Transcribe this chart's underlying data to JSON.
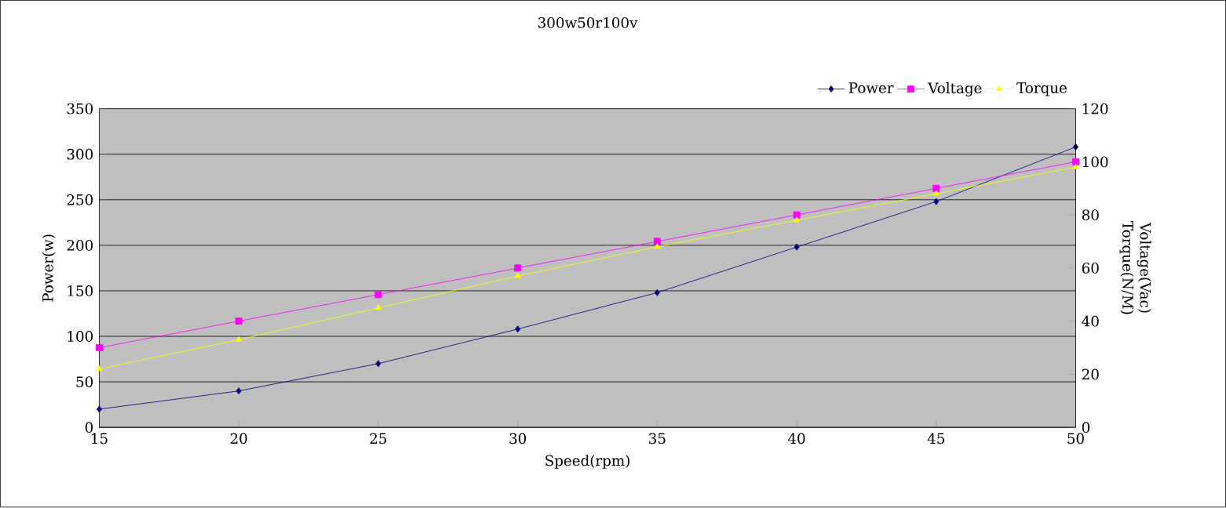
{
  "chart_data": {
    "type": "line",
    "title": "300w50r100v",
    "xlabel": "Speed(rpm)",
    "ylabel": "Power(w)",
    "y2label": "Voltage(Vac) Torque(N/M)",
    "x": [
      15,
      20,
      25,
      30,
      35,
      40,
      45,
      50
    ],
    "series": [
      {
        "name": "Power",
        "color": "#000080",
        "marker": "diamond",
        "values": [
          20,
          40,
          70,
          108,
          148,
          198,
          248,
          308
        ]
      },
      {
        "name": "Voltage",
        "color": "#ff00ff",
        "marker": "square",
        "axis": "y2",
        "values": [
          30,
          40,
          50,
          60,
          70,
          80,
          90,
          100
        ]
      },
      {
        "name": "Torque",
        "color": "#ffff00",
        "marker": "triangle",
        "axis": "y2",
        "values": [
          22,
          33,
          45,
          57,
          68,
          78,
          88,
          98
        ]
      }
    ],
    "xlim": [
      15,
      50
    ],
    "xticks": [
      15,
      20,
      25,
      30,
      35,
      40,
      45,
      50
    ],
    "ylim": [
      0,
      350
    ],
    "yticks": [
      0,
      50,
      100,
      150,
      200,
      250,
      300,
      350
    ],
    "y2lim": [
      0,
      120
    ],
    "y2ticks": [
      0,
      20,
      40,
      60,
      80,
      100,
      120
    ],
    "grid": "y",
    "legend": "top right"
  }
}
